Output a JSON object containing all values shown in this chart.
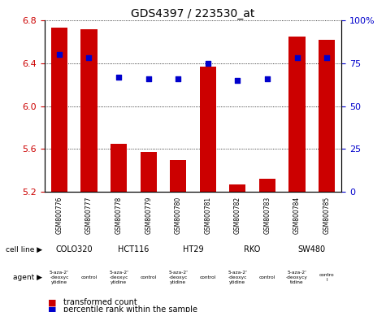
{
  "title": "GDS4397 / 223530_at",
  "samples": [
    "GSM800776",
    "GSM800777",
    "GSM800778",
    "GSM800779",
    "GSM800780",
    "GSM800781",
    "GSM800782",
    "GSM800783",
    "GSM800784",
    "GSM800785"
  ],
  "bar_values": [
    6.73,
    6.72,
    5.65,
    5.57,
    5.5,
    6.37,
    5.27,
    5.32,
    6.65,
    6.62
  ],
  "percentile_values": [
    80,
    78,
    67,
    66,
    66,
    75,
    65,
    66,
    78,
    78
  ],
  "ylim_left": [
    5.2,
    6.8
  ],
  "ylim_right": [
    0,
    100
  ],
  "yticks_left": [
    5.2,
    5.6,
    6.0,
    6.4,
    6.8
  ],
  "yticks_right": [
    0,
    25,
    50,
    75,
    100
  ],
  "cell_lines": [
    {
      "name": "COLO320",
      "span": [
        0,
        2
      ],
      "color": "#ccffcc"
    },
    {
      "name": "HCT116",
      "span": [
        2,
        4
      ],
      "color": "#ccffcc"
    },
    {
      "name": "HT29",
      "span": [
        4,
        6
      ],
      "color": "#ccffcc"
    },
    {
      "name": "RKO",
      "span": [
        6,
        8
      ],
      "color": "#ccffcc"
    },
    {
      "name": "SW480",
      "span": [
        8,
        10
      ],
      "color": "#00ee55"
    }
  ],
  "agents": [
    {
      "name": "5-aza-2'\n-deoxyc\nytidine",
      "span": [
        0,
        1
      ],
      "color": "#dd66dd"
    },
    {
      "name": "control",
      "span": [
        1,
        2
      ],
      "color": "#dd66dd"
    },
    {
      "name": "5-aza-2'\n-deoxyc\nytidine",
      "span": [
        2,
        3
      ],
      "color": "#dd66dd"
    },
    {
      "name": "control",
      "span": [
        3,
        4
      ],
      "color": "#dd66dd"
    },
    {
      "name": "5-aza-2'\n-deoxyc\nytidine",
      "span": [
        4,
        5
      ],
      "color": "#dd66dd"
    },
    {
      "name": "control",
      "span": [
        5,
        6
      ],
      "color": "#dd66dd"
    },
    {
      "name": "5-aza-2'\n-deoxyc\nytidine",
      "span": [
        6,
        7
      ],
      "color": "#dd66dd"
    },
    {
      "name": "control",
      "span": [
        7,
        8
      ],
      "color": "#dd66dd"
    },
    {
      "name": "5-aza-2'\n-deoxycy\ntidine",
      "span": [
        8,
        9
      ],
      "color": "#dd66dd"
    },
    {
      "name": "contro\nl",
      "span": [
        9,
        10
      ],
      "color": "#dd66dd"
    }
  ],
  "bar_color": "#cc0000",
  "dot_color": "#0000cc",
  "bar_width": 0.55,
  "ylabel_left_color": "#cc0000",
  "ylabel_right_color": "#0000cc",
  "title_fontsize": 10,
  "sample_bg_color": "#cccccc",
  "legend_items": [
    {
      "label": "transformed count",
      "color": "#cc0000"
    },
    {
      "label": "percentile rank within the sample",
      "color": "#0000cc"
    }
  ]
}
